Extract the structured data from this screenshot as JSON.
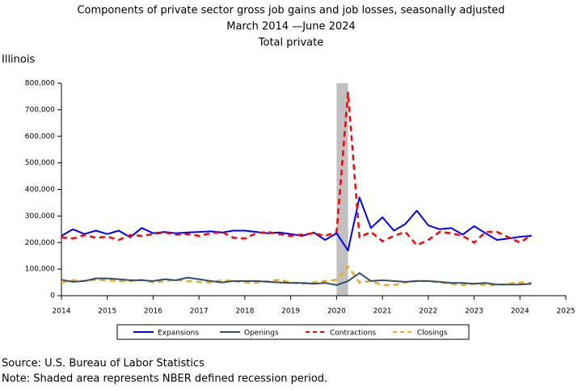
{
  "chart_data": {
    "type": "line",
    "title": "Components of private sector gross job gains and job losses, seasonally adjusted",
    "subtitle": "March 2014 —June 2024",
    "subtitle2": "Total private",
    "region": "Illinois",
    "source": "Source: U.S. Bureau of Labor Statistics",
    "note": "Note: Shaded area represents NBER defined recession period.",
    "shaded_region": [
      2020,
      2020.25
    ],
    "x": [
      2014,
      2014.25,
      2014.5,
      2014.75,
      2015,
      2015.25,
      2015.5,
      2015.75,
      2016,
      2016.25,
      2016.5,
      2016.75,
      2017,
      2017.25,
      2017.5,
      2017.75,
      2018,
      2018.25,
      2018.5,
      2018.75,
      2019,
      2019.25,
      2019.5,
      2019.75,
      2020,
      2020.25,
      2020.5,
      2020.75,
      2021,
      2021.25,
      2021.5,
      2021.75,
      2022,
      2022.25,
      2022.5,
      2022.75,
      2023,
      2023.25,
      2023.5,
      2023.75,
      2024,
      2024.25
    ],
    "series": [
      {
        "name": "Expansions",
        "color": "#0000ff",
        "dash": false,
        "values": [
          225000,
          250000,
          232000,
          245000,
          232000,
          245000,
          220000,
          255000,
          235000,
          240000,
          235000,
          238000,
          240000,
          242000,
          238000,
          245000,
          245000,
          240000,
          235000,
          238000,
          232000,
          225000,
          238000,
          210000,
          235000,
          170000,
          370000,
          255000,
          295000,
          245000,
          270000,
          320000,
          265000,
          250000,
          255000,
          230000,
          262000,
          235000,
          210000,
          215000,
          222000,
          225000
        ]
      },
      {
        "name": "Openings",
        "color": "#2f4f6f",
        "dash": false,
        "values": [
          60000,
          52000,
          55000,
          65000,
          65000,
          62000,
          58000,
          58000,
          55000,
          62000,
          58000,
          68000,
          62000,
          55000,
          50000,
          55000,
          55000,
          55000,
          52000,
          50000,
          48000,
          48000,
          45000,
          48000,
          40000,
          55000,
          85000,
          55000,
          58000,
          55000,
          52000,
          55000,
          55000,
          52000,
          48000,
          48000,
          45000,
          48000,
          42000,
          42000,
          42000,
          45000
        ]
      },
      {
        "name": "Contractions",
        "color": "#ff0000",
        "dash": true,
        "values": [
          220000,
          215000,
          228000,
          218000,
          222000,
          210000,
          228000,
          225000,
          232000,
          238000,
          230000,
          232000,
          225000,
          235000,
          240000,
          218000,
          215000,
          235000,
          240000,
          232000,
          225000,
          230000,
          235000,
          225000,
          240000,
          765000,
          220000,
          240000,
          205000,
          225000,
          240000,
          190000,
          210000,
          240000,
          235000,
          225000,
          200000,
          240000,
          240000,
          220000,
          200000,
          228000
        ]
      },
      {
        "name": "Closings",
        "color": "#f0a818",
        "dash": true,
        "values": [
          50000,
          58000,
          55000,
          60000,
          58000,
          55000,
          55000,
          60000,
          50000,
          55000,
          60000,
          55000,
          52000,
          50000,
          58000,
          55000,
          50000,
          50000,
          55000,
          60000,
          50000,
          45000,
          50000,
          55000,
          60000,
          110000,
          50000,
          55000,
          40000,
          40000,
          50000,
          55000,
          55000,
          50000,
          45000,
          40000,
          45000,
          40000,
          40000,
          45000,
          50000,
          48000
        ]
      }
    ],
    "xlim": [
      2014,
      2025
    ],
    "xticks": [
      2014,
      2015,
      2016,
      2017,
      2018,
      2019,
      2020,
      2021,
      2022,
      2023,
      2024,
      2025
    ],
    "ylim": [
      0,
      800000
    ],
    "yticks": [
      0,
      {
        "value": 100000,
        "label": "100,000"
      },
      {
        "value": 200000,
        "label": "200,000"
      },
      {
        "value": 300000,
        "label": "300,000"
      },
      {
        "value": 400000,
        "label": "400,000"
      },
      {
        "value": 500000,
        "label": "500,000"
      },
      {
        "value": 600000,
        "label": "600,000"
      },
      {
        "value": 700000,
        "label": "700,000"
      },
      {
        "value": 800000,
        "label": "800,000"
      }
    ]
  }
}
